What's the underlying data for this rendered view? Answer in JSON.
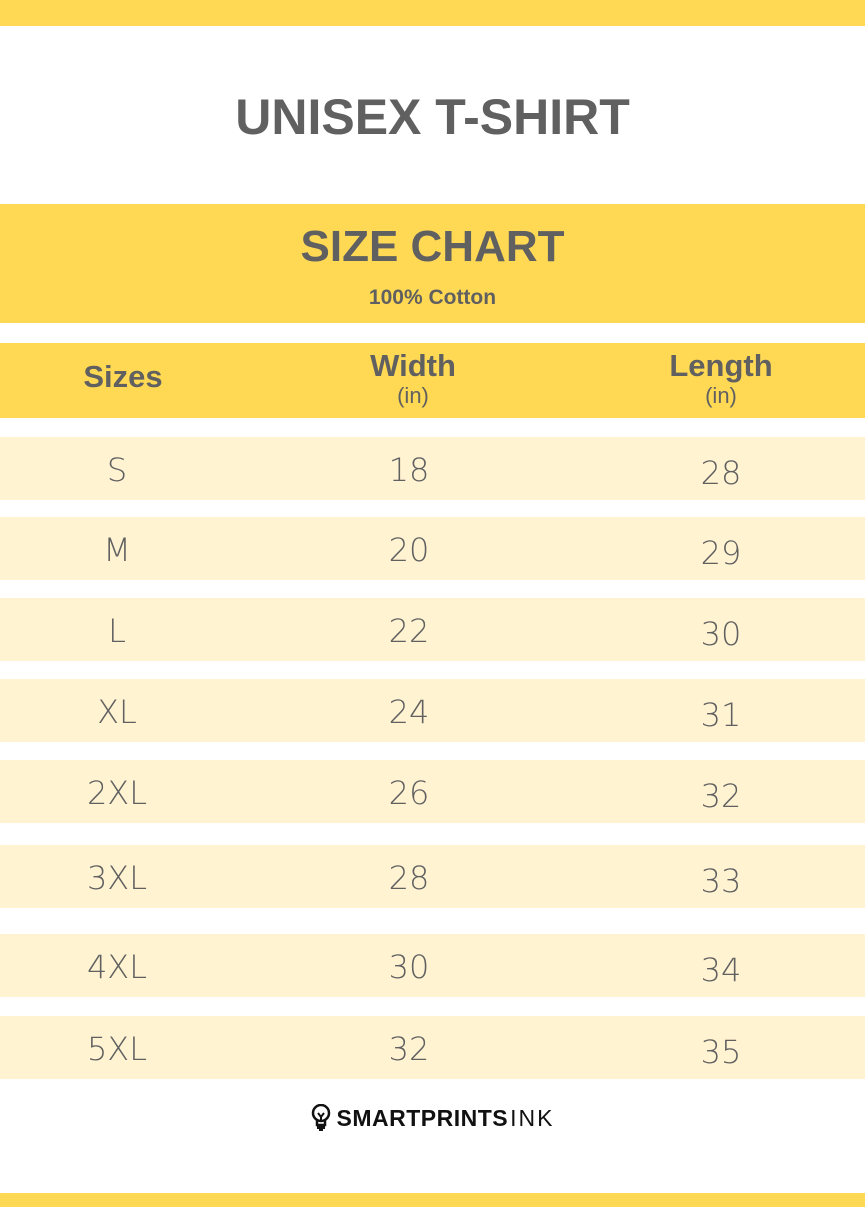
{
  "title": "UNISEX T-SHIRT",
  "banner": {
    "heading": "SIZE CHART",
    "subheading": "100% Cotton"
  },
  "headers": {
    "sizes": "Sizes",
    "width": "Width",
    "width_unit": "(in)",
    "length": "Length",
    "length_unit": "(in)"
  },
  "rows": [
    {
      "size": "S",
      "width": "18",
      "length": "28"
    },
    {
      "size": "M",
      "width": "20",
      "length": "29"
    },
    {
      "size": "L",
      "width": "22",
      "length": "30"
    },
    {
      "size": "XL",
      "width": "24",
      "length": "31"
    },
    {
      "size": "2XL",
      "width": "26",
      "length": "32"
    },
    {
      "size": "3XL",
      "width": "28",
      "length": "33"
    },
    {
      "size": "4XL",
      "width": "30",
      "length": "34"
    },
    {
      "size": "5XL",
      "width": "32",
      "length": "35"
    }
  ],
  "logo": {
    "bold": "SMARTPRINTS",
    "light": "INK",
    "icon": "lightbulb-icon"
  },
  "colors": {
    "accent": "#FFD954",
    "row": "#FFF3D2",
    "text": "#606060"
  }
}
